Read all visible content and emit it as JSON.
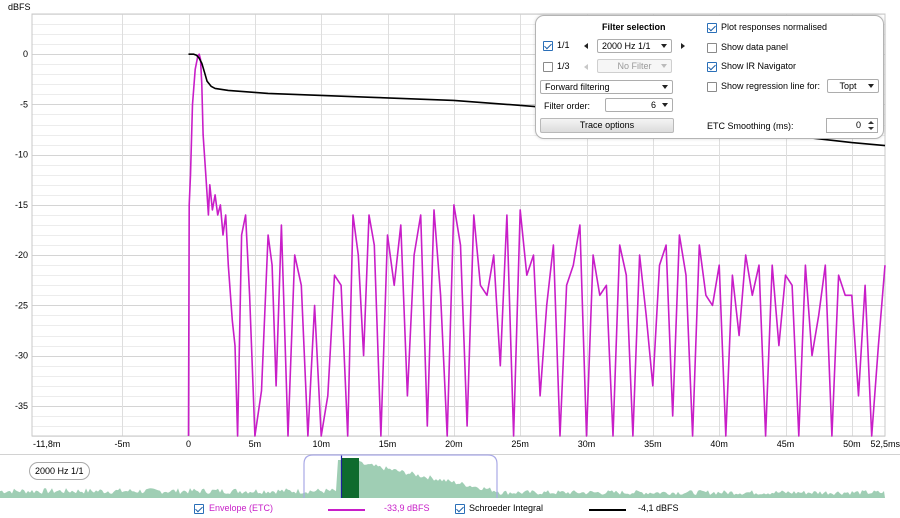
{
  "chart_data": {
    "type": "line",
    "title": "",
    "ylabel": "dBFS",
    "xlabel": "",
    "x_unit": "ms",
    "xlim": [
      -11.8,
      52.5
    ],
    "ylim": [
      -38,
      4
    ],
    "grid": true,
    "x_ticks": [
      {
        "v": -11.8,
        "label": "-11,8m"
      },
      {
        "v": -5,
        "label": "-5m"
      },
      {
        "v": 0,
        "label": "0"
      },
      {
        "v": 5,
        "label": "5m"
      },
      {
        "v": 10,
        "label": "10m"
      },
      {
        "v": 15,
        "label": "15m"
      },
      {
        "v": 20,
        "label": "20m"
      },
      {
        "v": 25,
        "label": "25m"
      },
      {
        "v": 30,
        "label": "30m"
      },
      {
        "v": 35,
        "label": "35m"
      },
      {
        "v": 40,
        "label": "40m"
      },
      {
        "v": 45,
        "label": "45m"
      },
      {
        "v": 50,
        "label": "50m"
      },
      {
        "v": 52.5,
        "label": "52,5ms"
      }
    ],
    "y_ticks": [
      {
        "v": 0,
        "label": "0"
      },
      {
        "v": -5,
        "label": "-5"
      },
      {
        "v": -10,
        "label": "-10"
      },
      {
        "v": -15,
        "label": "-15"
      },
      {
        "v": -20,
        "label": "-20"
      },
      {
        "v": -25,
        "label": "-25"
      },
      {
        "v": -30,
        "label": "-30"
      },
      {
        "v": -35,
        "label": "-35"
      }
    ],
    "series": [
      {
        "name": "Schroeder Integral",
        "color": "#000000",
        "x": [
          0,
          0.4,
          0.6,
          0.8,
          1.0,
          1.2,
          1.4,
          1.7,
          2,
          3,
          4,
          5,
          6,
          8,
          10,
          12,
          14,
          16,
          18,
          20,
          22,
          24,
          26,
          28,
          30,
          32,
          34,
          36,
          38,
          40,
          42,
          44,
          46,
          48,
          50,
          52.5
        ],
        "y": [
          0,
          0,
          -0.1,
          -0.4,
          -0.9,
          -1.8,
          -2.7,
          -3.2,
          -3.4,
          -3.6,
          -3.7,
          -3.8,
          -3.9,
          -4.0,
          -4.1,
          -4.2,
          -4.3,
          -4.4,
          -4.5,
          -4.6,
          -4.8,
          -5.0,
          -5.2,
          -5.5,
          -5.8,
          -6.1,
          -6.4,
          -6.7,
          -7.0,
          -7.3,
          -7.6,
          -7.9,
          -8.2,
          -8.5,
          -8.8,
          -9.1
        ]
      },
      {
        "name": "Envelope (ETC)",
        "color": "#c81ec8",
        "x": [
          0,
          0.05,
          0.15,
          0.3,
          0.5,
          0.7,
          0.8,
          0.9,
          1.0,
          1.1,
          1.3,
          1.5,
          1.6,
          1.8,
          2.0,
          2.2,
          2.4,
          2.6,
          2.8,
          3.0,
          3.3,
          3.5,
          3.7,
          4.0,
          4.3,
          4.6,
          5.0,
          5.5,
          6.0,
          6.3,
          6.6,
          7.0,
          7.5,
          8.0,
          8.5,
          9.0,
          9.5,
          10.0,
          10.5,
          11.0,
          11.5,
          12.0,
          12.4,
          12.8,
          13.2,
          13.6,
          14.0,
          14.5,
          15.0,
          15.5,
          16.0,
          16.5,
          17.0,
          17.5,
          18.0,
          18.5,
          19.0,
          19.5,
          20.0,
          20.5,
          21.0,
          21.5,
          22.0,
          22.5,
          23.0,
          23.5,
          24.0,
          24.5,
          25.0,
          25.5,
          26.0,
          26.5,
          27.0,
          27.5,
          28.0,
          28.5,
          29.0,
          29.5,
          30.0,
          30.5,
          31.0,
          31.5,
          32.0,
          32.5,
          33.0,
          33.5,
          34.0,
          34.5,
          35.0,
          35.5,
          36.0,
          36.5,
          37.0,
          37.5,
          38.0,
          38.5,
          39.0,
          39.5,
          40.0,
          40.5,
          41.0,
          41.5,
          42.0,
          42.5,
          43.0,
          43.5,
          44.0,
          44.5,
          45.0,
          45.5,
          46.0,
          46.5,
          47.0,
          47.5,
          48.0,
          48.5,
          49.0,
          49.5,
          50.0,
          50.5,
          51.0,
          51.5,
          52.0,
          52.5
        ],
        "y": [
          -38,
          -15,
          -12,
          -5,
          -1.5,
          -0.2,
          0,
          -0.5,
          -3,
          -8,
          -12,
          -16,
          -13,
          -15.5,
          -14,
          -16,
          -15,
          -18,
          -16,
          -21,
          -26.5,
          -29,
          -38,
          -18,
          -16,
          -24,
          -38,
          -33.5,
          -18,
          -21,
          -33,
          -17,
          -38,
          -20,
          -23,
          -38,
          -25,
          -38,
          -34,
          -22,
          -23,
          -38,
          -16,
          -20,
          -30,
          -16,
          -19,
          -38,
          -18,
          -23,
          -17,
          -34,
          -20,
          -16,
          -37,
          -15.5,
          -24,
          -38,
          -15,
          -19,
          -37,
          -16,
          -23,
          -24,
          -20,
          -31,
          -16,
          -38,
          -15.5,
          -22,
          -20,
          -34,
          -25,
          -19,
          -38,
          -23,
          -21,
          -17,
          -38,
          -20,
          -24,
          -23,
          -38,
          -19,
          -22,
          -38,
          -20,
          -26,
          -33,
          -21,
          -19,
          -36,
          -18,
          -22,
          -38,
          -19,
          -24,
          -25,
          -21,
          -38,
          -22,
          -28,
          -20,
          -24,
          -21,
          -38,
          -21,
          -29,
          -22,
          -23,
          -38,
          -21,
          -30,
          -26,
          -21,
          -38,
          -22,
          -24,
          -24,
          -34,
          -23,
          -38,
          -29,
          -21
        ]
      }
    ]
  },
  "filter_panel": {
    "filter_selection_label": "Filter selection",
    "octave_label": "1/1",
    "octave_checked": true,
    "octave_value": "2000 Hz 1/1",
    "third_label": "1/3",
    "third_checked": false,
    "third_value": "No Filter",
    "filtering_mode": "Forward filtering",
    "filter_order_label": "Filter order:",
    "filter_order_value": "6",
    "trace_options_label": "Trace options",
    "plot_normalised_label": "Plot responses normalised",
    "plot_normalised_checked": true,
    "show_data_panel_label": "Show data panel",
    "show_data_panel_checked": false,
    "show_ir_navigator_label": "Show IR Navigator",
    "show_ir_navigator_checked": true,
    "regression_label": "Show regression line for:",
    "regression_checked": false,
    "regression_value": "Topt",
    "etc_smoothing_label": "ETC Smoothing (ms):",
    "etc_smoothing_value": "0"
  },
  "navigator": {
    "label": "2000 Hz 1/1",
    "fill_color": "#9fceb4",
    "window_color": "#0f6b2e",
    "frame_color": "#a9a9e6"
  },
  "legend": {
    "envelope_label": "Envelope (ETC)",
    "envelope_checked": true,
    "envelope_color": "#c81ec8",
    "envelope_value": "-33,9 dBFS",
    "schroeder_label": "Schroeder Integral",
    "schroeder_checked": true,
    "schroeder_color": "#000000",
    "schroeder_value": "-4,1 dBFS"
  }
}
